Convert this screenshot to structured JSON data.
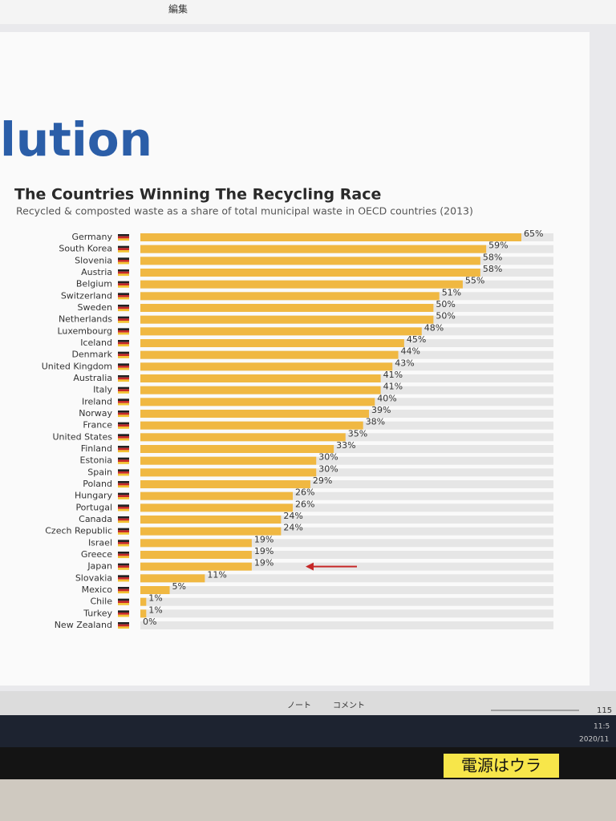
{
  "chart_data": {
    "type": "hbar",
    "heading": "lution",
    "title": "The Countries Winning The Recycling Race",
    "subtitle": "Recycled & composted waste as a share of total municipal waste in OECD countries (2013)",
    "categories": [
      "Germany",
      "South Korea",
      "Slovenia",
      "Austria",
      "Belgium",
      "Switzerland",
      "Sweden",
      "Netherlands",
      "Luxembourg",
      "Iceland",
      "Denmark",
      "United Kingdom",
      "Australia",
      "Italy",
      "Ireland",
      "Norway",
      "France",
      "United States",
      "Finland",
      "Estonia",
      "Spain",
      "Poland",
      "Hungary",
      "Portugal",
      "Canada",
      "Czech Republic",
      "Israel",
      "Greece",
      "Japan",
      "Slovakia",
      "Mexico",
      "Chile",
      "Turkey",
      "New Zealand"
    ],
    "values": [
      65,
      59,
      58,
      58,
      55,
      51,
      50,
      50,
      48,
      45,
      44,
      43,
      41,
      41,
      40,
      39,
      38,
      35,
      33,
      30,
      30,
      29,
      26,
      26,
      24,
      24,
      19,
      19,
      19,
      11,
      5,
      1,
      1,
      0
    ],
    "value_labels": [
      "65%",
      "59%",
      "58%",
      "58%",
      "55%",
      "51%",
      "50%",
      "50%",
      "48%",
      "45%",
      "44%",
      "43%",
      "41%",
      "41%",
      "40%",
      "39%",
      "38%",
      "35%",
      "33%",
      "30%",
      "30%",
      "29%",
      "26%",
      "26%",
      "24%",
      "24%",
      "19%",
      "19%",
      "19%",
      "11%",
      "5%",
      "1%",
      "1%",
      "0%"
    ],
    "color": "#f0b842"
  },
  "ui": {
    "menu": "編集",
    "notes": "ノート",
    "comments": "コメント",
    "zoom": "115",
    "time": "11:5",
    "date": "2020/11",
    "sticker": "電源はウラ"
  }
}
